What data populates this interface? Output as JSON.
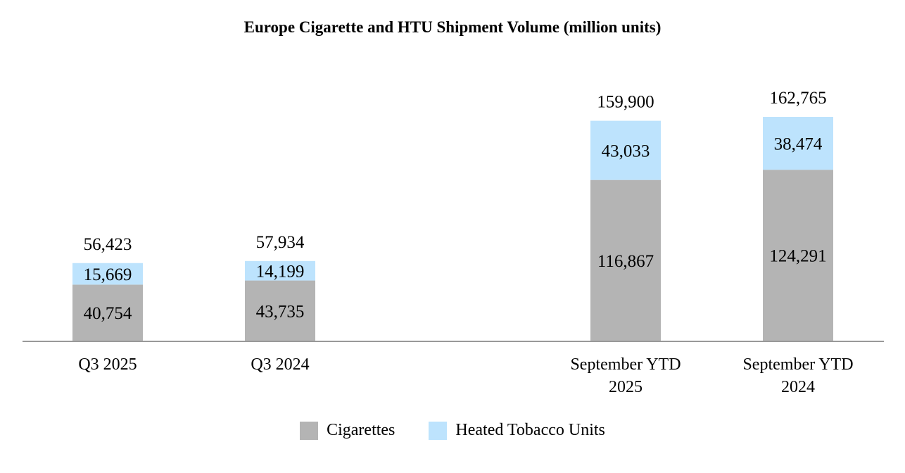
{
  "chart_data": {
    "type": "bar",
    "stacked": true,
    "title": "Europe Cigarette and HTU Shipment Volume (million units)",
    "categories": [
      [
        "Q3 2025"
      ],
      [
        "Q3 2024"
      ],
      [
        "September YTD",
        "2025"
      ],
      [
        "September YTD",
        "2024"
      ]
    ],
    "series": [
      {
        "name": "Cigarettes",
        "color": "#b4b4b4",
        "values": [
          40754,
          43735,
          116867,
          124291
        ],
        "labels": [
          "40,754",
          "43,735",
          "116,867",
          "124,291"
        ]
      },
      {
        "name": "Heated Tobacco Units",
        "color": "#bde3fd",
        "values": [
          15669,
          14199,
          43033,
          38474
        ],
        "labels": [
          "15,669",
          "14,199",
          "43,033",
          "38,474"
        ]
      }
    ],
    "totals": [
      56423,
      57934,
      159900,
      162765
    ],
    "total_labels": [
      "56,423",
      "57,934",
      "159,900",
      "162,765"
    ],
    "ylim": [
      0,
      162765
    ],
    "legend_position": "bottom",
    "grid": false
  }
}
